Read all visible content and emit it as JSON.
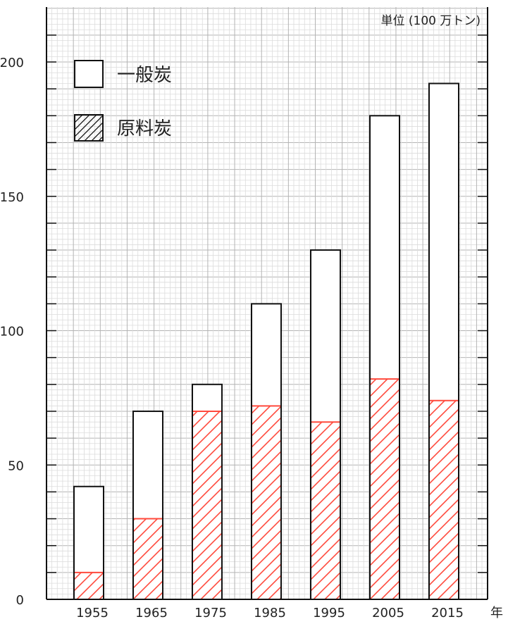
{
  "chart_data": {
    "type": "bar",
    "stacked": true,
    "categories": [
      "1955",
      "1965",
      "1975",
      "1985",
      "1995",
      "2005",
      "2015"
    ],
    "series": [
      {
        "name": "原料炭",
        "values": [
          10,
          30,
          70,
          72,
          66,
          82,
          74
        ],
        "fill": "hatched",
        "color": "#ff4a3d"
      },
      {
        "name": "一般炭",
        "values": [
          32,
          40,
          10,
          38,
          64,
          98,
          118
        ],
        "fill": "white",
        "color": "#111111"
      }
    ],
    "totals": [
      42,
      70,
      80,
      110,
      130,
      180,
      192
    ],
    "ylim": [
      0,
      220
    ],
    "yticks": [
      0,
      50,
      100,
      150,
      200
    ],
    "unit_label": "単位 (100 万トン)",
    "xlabel": "年",
    "grid": true,
    "legend_position": "top-left"
  }
}
